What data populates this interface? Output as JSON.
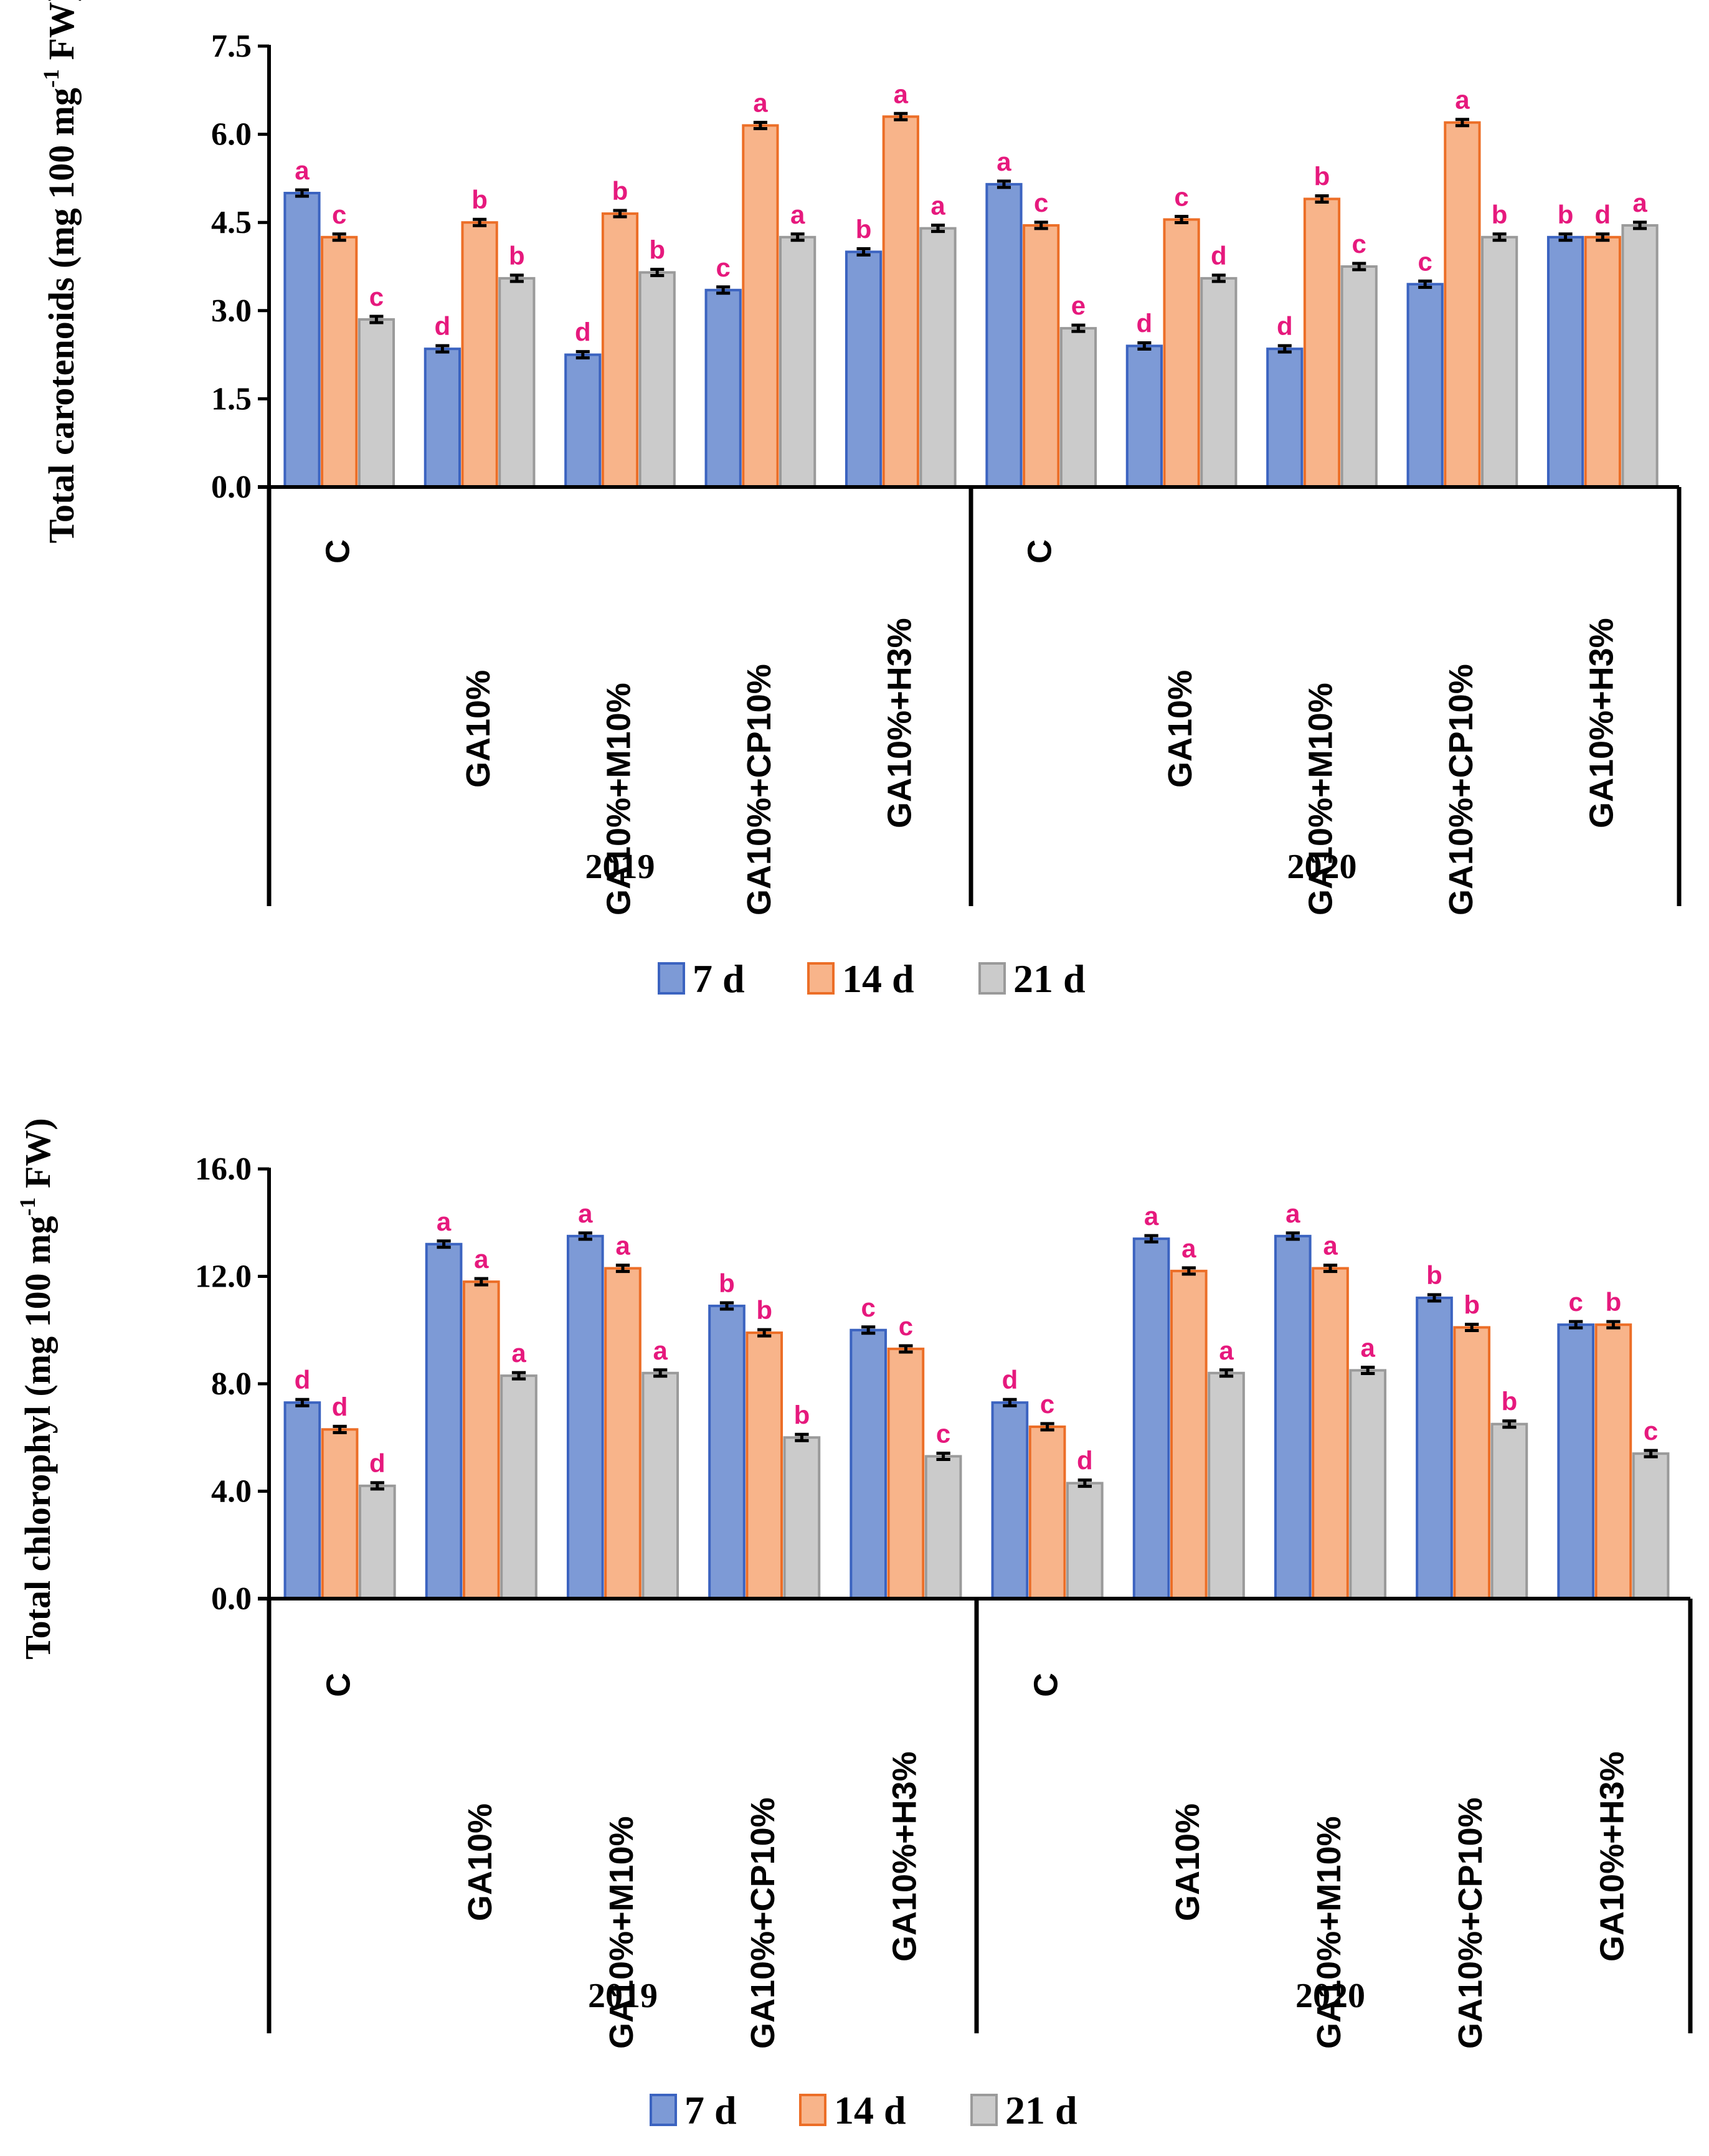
{
  "chart_data": [
    {
      "type": "bar",
      "ylabel": "Total carotenoids (mg 100 mg",
      "ylabel_sup": "-1",
      "ylabel_tail": " FW)",
      "ylim": [
        0,
        7.5
      ],
      "yticks": [
        "0.0",
        "1.5",
        "3.0",
        "4.5",
        "6.0",
        "7.5"
      ],
      "groups": [
        "2019",
        "2020"
      ],
      "categories": [
        "C",
        "GA10%",
        "GA10%+M10%",
        "GA10%+CP10%",
        "GA10%+H3%",
        "C",
        "GA10%",
        "GA10%+M10%",
        "GA10%+CP10%",
        "GA10%+H3%"
      ],
      "series": [
        {
          "name": "7 d",
          "values": [
            5.0,
            2.35,
            2.25,
            3.35,
            4.0,
            5.15,
            2.4,
            2.35,
            3.45,
            4.25
          ],
          "letters": [
            "a",
            "d",
            "d",
            "c",
            "b",
            "a",
            "d",
            "d",
            "c",
            "b"
          ]
        },
        {
          "name": "14 d",
          "values": [
            4.25,
            4.5,
            4.65,
            6.15,
            6.3,
            4.45,
            4.55,
            4.9,
            6.2,
            4.25
          ],
          "letters": [
            "c",
            "b",
            "b",
            "a",
            "a",
            "c",
            "c",
            "b",
            "a",
            "d"
          ]
        },
        {
          "name": "21 d",
          "values": [
            2.85,
            3.55,
            3.65,
            4.25,
            4.4,
            2.7,
            3.55,
            3.75,
            4.25,
            4.45
          ],
          "letters": [
            "c",
            "b",
            "b",
            "a",
            "a",
            "e",
            "d",
            "c",
            "b",
            "a"
          ]
        }
      ],
      "legend": [
        "7 d",
        "14 d",
        "21 d"
      ]
    },
    {
      "type": "bar",
      "ylabel": "Total chlorophyl (mg 100 mg",
      "ylabel_sup": "-1",
      "ylabel_tail": " FW)",
      "ylim": [
        0,
        16
      ],
      "yticks": [
        "0.0",
        "4.0",
        "8.0",
        "12.0",
        "16.0"
      ],
      "groups": [
        "2019",
        "2020"
      ],
      "categories": [
        "C",
        "GA10%",
        "GA10%+M10%",
        "GA10%+CP10%",
        "GA10%+H3%",
        "C",
        "GA10%",
        "GA10%+M10%",
        "GA10%+CP10%",
        "GA10%+H3%"
      ],
      "series": [
        {
          "name": "7 d",
          "values": [
            7.3,
            13.2,
            13.5,
            10.9,
            10.0,
            7.3,
            13.4,
            13.5,
            11.2,
            10.2
          ],
          "letters": [
            "d",
            "a",
            "a",
            "b",
            "c",
            "d",
            "a",
            "a",
            "b",
            "c"
          ]
        },
        {
          "name": "14 d",
          "values": [
            6.3,
            11.8,
            12.3,
            9.9,
            9.3,
            6.4,
            12.2,
            12.3,
            10.1,
            10.2
          ],
          "letters": [
            "d",
            "a",
            "a",
            "b",
            "c",
            "c",
            "a",
            "a",
            "b",
            "b"
          ]
        },
        {
          "name": "21 d",
          "values": [
            4.2,
            8.3,
            8.4,
            6.0,
            5.3,
            4.3,
            8.4,
            8.5,
            6.5,
            5.4
          ],
          "letters": [
            "d",
            "a",
            "a",
            "b",
            "c",
            "d",
            "a",
            "a",
            "b",
            "c"
          ]
        }
      ],
      "legend": [
        "7 d",
        "14 d",
        "21 d"
      ]
    }
  ],
  "colors": {
    "s7_fill": "#7d9ad6",
    "s7_stroke": "#3b63c0",
    "s14_fill": "#f8b48a",
    "s14_stroke": "#ec6e27",
    "s21_fill": "#cbcbcb",
    "s21_stroke": "#9a9a9a",
    "letters": "#e6197d"
  }
}
